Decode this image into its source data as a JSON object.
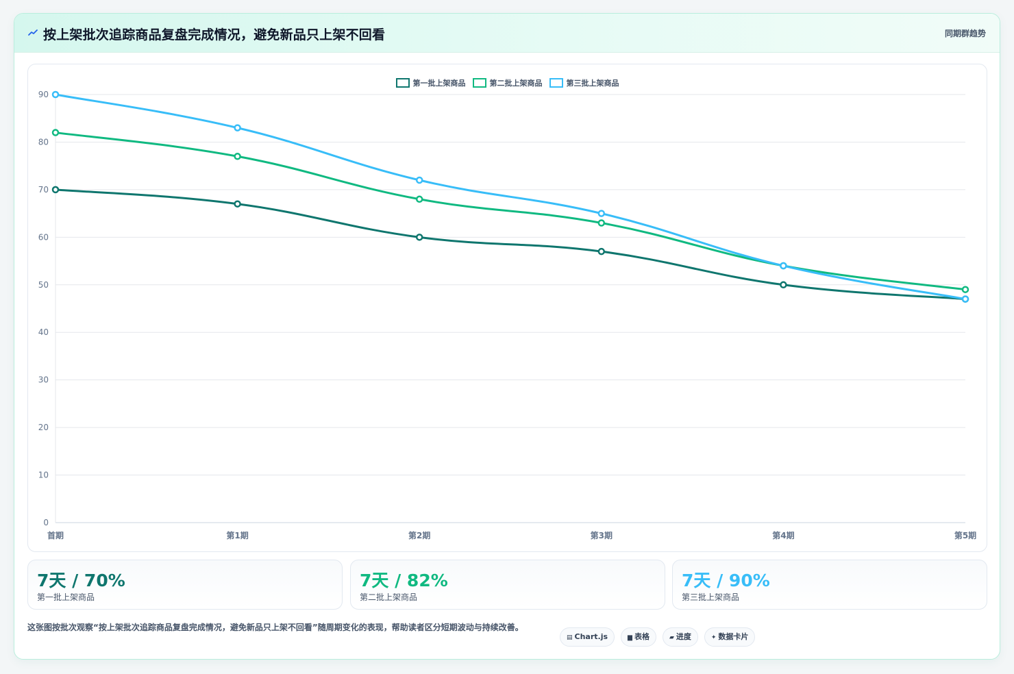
{
  "header": {
    "title": "按上架批次追踪商品复盘完成情况，避免新品只上架不回看",
    "badge": "同期群趋势",
    "icon": "trend-line-icon"
  },
  "chart_data": {
    "type": "line",
    "x": [
      "首期",
      "第1期",
      "第2期",
      "第3期",
      "第4期",
      "第5期"
    ],
    "ylim": [
      0,
      90
    ],
    "yticks": [
      0,
      10,
      20,
      30,
      40,
      50,
      60,
      70,
      80,
      90
    ],
    "grid": true,
    "legend_position": "top-center",
    "series": [
      {
        "name": "第一批上架商品",
        "color": "#0f766e",
        "values": [
          70,
          67,
          60,
          57,
          50,
          47
        ]
      },
      {
        "name": "第二批上架商品",
        "color": "#10b981",
        "values": [
          82,
          77,
          68,
          63,
          54,
          49
        ]
      },
      {
        "name": "第三批上架商品",
        "color": "#38bdf8",
        "values": [
          90,
          83,
          72,
          65,
          54,
          47
        ]
      }
    ]
  },
  "kpis": [
    {
      "value": "7天 / 70%",
      "label": "第一批上架商品",
      "color": "#0f766e"
    },
    {
      "value": "7天 / 82%",
      "label": "第二批上架商品",
      "color": "#10b981"
    },
    {
      "value": "7天 / 90%",
      "label": "第三批上架商品",
      "color": "#38bdf8"
    }
  ],
  "footer": {
    "note": "这张图按批次观察“按上架批次追踪商品复盘完成情况，避免新品只上架不回看”随周期变化的表现，帮助读者区分短期波动与持续改善。",
    "tags": [
      {
        "icon": "window-icon",
        "glyph": "▤",
        "label": "Chart.js"
      },
      {
        "icon": "table-icon",
        "glyph": "▆",
        "label": "表格"
      },
      {
        "icon": "progress-icon",
        "glyph": "▰",
        "label": "进度"
      },
      {
        "icon": "sparkle-icon",
        "glyph": "✦",
        "label": "数据卡片"
      }
    ]
  }
}
